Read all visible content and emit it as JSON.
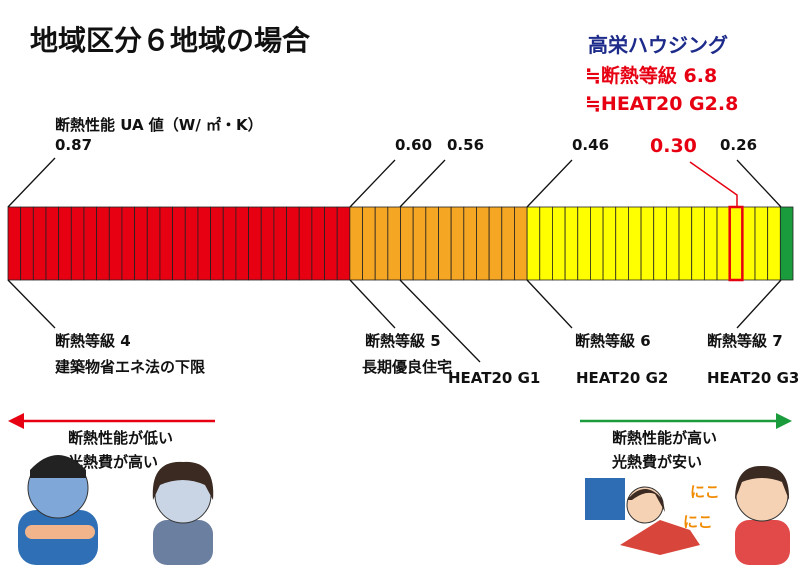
{
  "header": {
    "title": "地域区分６地域の場合"
  },
  "badge": {
    "company": "高栄ハウジング",
    "lines": [
      "≒断熱等級 6.8",
      "≒HEAT20 G2.8"
    ]
  },
  "scale": {
    "axis_label": "断熱性能 UA 値（W/ ㎡・K）",
    "values": [
      "0.87",
      "0.60",
      "0.56",
      "0.46",
      "0.30",
      "0.26"
    ]
  },
  "grades": [
    "断熱等級 4",
    "建築物省エネ法の下限",
    "断熱等級 5",
    "長期優良住宅",
    "HEAT20 G1",
    "断熱等級 6",
    "HEAT20 G2",
    "断熱等級 7",
    "HEAT20 G3"
  ],
  "left": {
    "lines": [
      "断熱性能が低い",
      "光熱費が高い"
    ]
  },
  "right": {
    "lines": [
      "断熱性能が高い",
      "光熱費が安い"
    ]
  },
  "illustration": {
    "smile": [
      "にこ",
      "にこ"
    ]
  }
}
